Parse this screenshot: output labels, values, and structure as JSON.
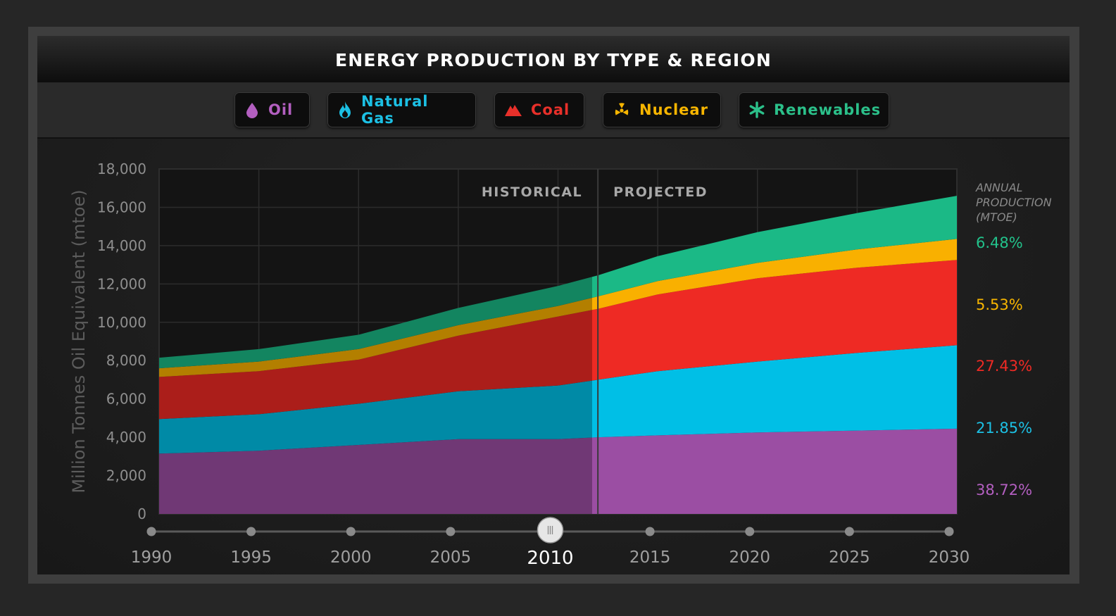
{
  "title": "ENERGY PRODUCTION BY TYPE & REGION",
  "legend": [
    {
      "label": "Oil",
      "icon": "drop-icon",
      "color": "#b35fc0"
    },
    {
      "label": "Natural Gas",
      "icon": "flame-icon",
      "color": "#1cc0e4"
    },
    {
      "label": "Coal",
      "icon": "mountain-icon",
      "color": "#e8302a"
    },
    {
      "label": "Nuclear",
      "icon": "radiation-icon",
      "color": "#f7b500"
    },
    {
      "label": "Renewables",
      "icon": "asterisk-icon",
      "color": "#2bc08a"
    }
  ],
  "chart_data": {
    "type": "area",
    "stacked": true,
    "ylabel": "Million Tonnes Oil Equivalent (mtoe)",
    "ylim": [
      0,
      18000
    ],
    "yticks": [
      "0",
      "2,000",
      "4,000",
      "6,000",
      "8,000",
      "10,000",
      "12,000",
      "14,000",
      "16,000",
      "18,000"
    ],
    "x": [
      1990,
      1995,
      2000,
      2005,
      2010,
      2012,
      2015,
      2020,
      2025,
      2030
    ],
    "divider_year": 2012,
    "historical_label": "HISTORICAL",
    "projected_label": "PROJECTED",
    "series": [
      {
        "name": "Oil",
        "color": "#9b4ea3",
        "values": [
          3150,
          3300,
          3600,
          3900,
          3900,
          4000,
          4100,
          4250,
          4350,
          4450
        ]
      },
      {
        "name": "Natural Gas",
        "color": "#00bfe6",
        "values": [
          1800,
          1900,
          2150,
          2500,
          2800,
          3000,
          3350,
          3700,
          4050,
          4350
        ]
      },
      {
        "name": "Coal",
        "color": "#ee2a24",
        "values": [
          2200,
          2250,
          2300,
          2900,
          3600,
          3700,
          4000,
          4350,
          4450,
          4450
        ]
      },
      {
        "name": "Nuclear",
        "color": "#f9b000",
        "values": [
          450,
          500,
          550,
          550,
          550,
          650,
          700,
          800,
          950,
          1100
        ]
      },
      {
        "name": "Renewables",
        "color": "#1bb986",
        "values": [
          550,
          650,
          750,
          900,
          1050,
          1100,
          1300,
          1600,
          1900,
          2250
        ]
      }
    ],
    "annual_production_label": [
      "ANNUAL",
      "PRODUCTION",
      "(MTOE)"
    ],
    "shares": [
      {
        "value": "6.48%",
        "color": "#22c28b"
      },
      {
        "value": "5.53%",
        "color": "#f7b500"
      },
      {
        "value": "27.43%",
        "color": "#ee2a24"
      },
      {
        "value": "21.85%",
        "color": "#1cc0e4"
      },
      {
        "value": "38.72%",
        "color": "#b35fc0"
      }
    ]
  },
  "timeline": {
    "years": [
      "1990",
      "1995",
      "2000",
      "2005",
      "2010",
      "2015",
      "2020",
      "2025",
      "2030"
    ],
    "selected": "2010",
    "handle_value": 2010
  }
}
